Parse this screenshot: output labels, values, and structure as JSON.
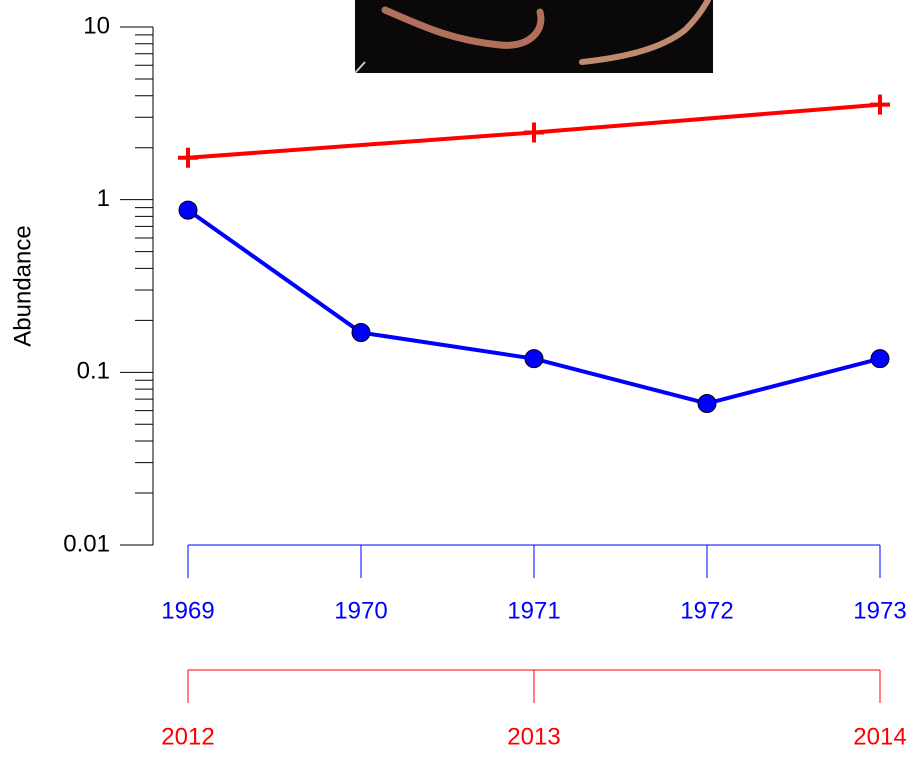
{
  "chart_data": {
    "type": "line",
    "ylabel": "Abundance",
    "log_y": true,
    "ylim": [
      0.01,
      10
    ],
    "yticks": [
      0.01,
      0.1,
      1,
      10
    ],
    "minor_yticks": [
      0.02,
      0.03,
      0.04,
      0.05,
      0.06,
      0.07,
      0.08,
      0.09,
      0.2,
      0.3,
      0.4,
      0.5,
      0.6,
      0.7,
      0.8,
      0.9,
      2,
      3,
      4,
      5,
      6,
      7,
      8,
      9
    ],
    "xlim": [
      1969,
      1973
    ],
    "xticks": [
      {
        "value": 1969,
        "label": "1969"
      },
      {
        "value": 1970,
        "label": "1970"
      },
      {
        "value": 1971,
        "label": "1971"
      },
      {
        "value": 1972,
        "label": "1972"
      },
      {
        "value": 1973,
        "label": "1973"
      }
    ],
    "x2lim": [
      2012,
      2014
    ],
    "x2ticks": [
      {
        "value": 2012,
        "label": "2012"
      },
      {
        "value": 2013,
        "label": "2013"
      },
      {
        "value": 2014,
        "label": "2014"
      }
    ],
    "series": [
      {
        "color": "#0000ff",
        "marker": "circle",
        "x": [
          1969,
          1970,
          1971,
          1972,
          1973
        ],
        "values": [
          0.87,
          0.17,
          0.12,
          0.066,
          0.12
        ]
      },
      {
        "color": "#ff0000",
        "marker": "plus",
        "axis": "x2",
        "x": [
          2012,
          2013,
          2014
        ],
        "values": [
          1.75,
          2.45,
          3.55
        ]
      }
    ]
  }
}
